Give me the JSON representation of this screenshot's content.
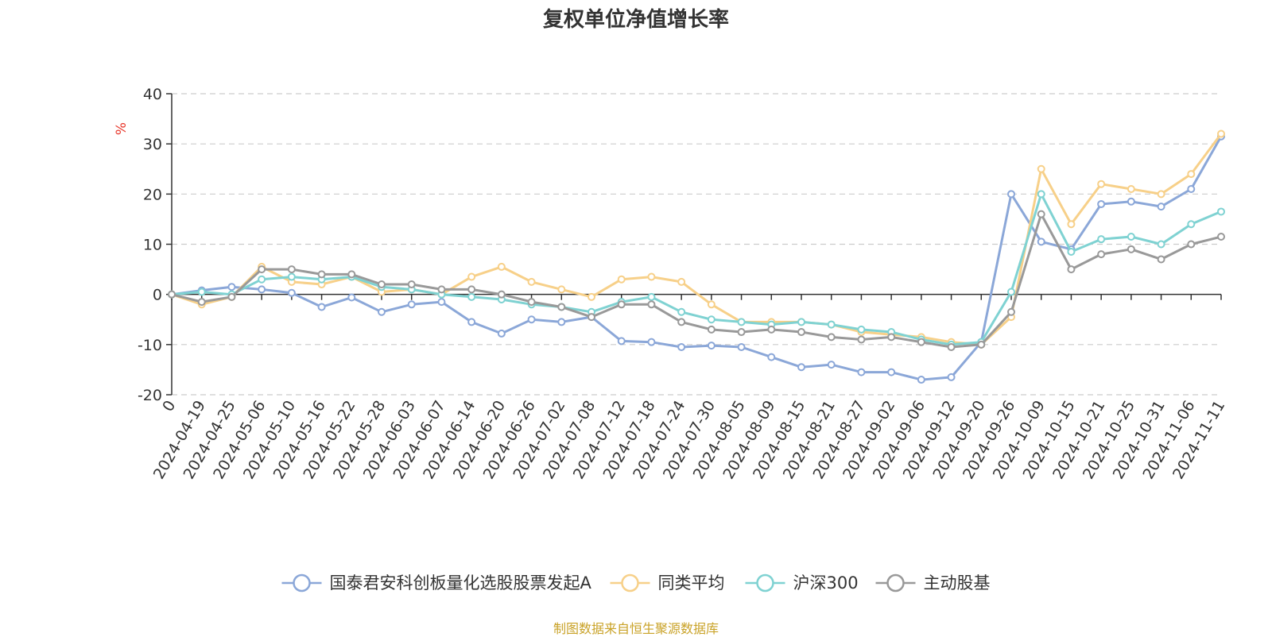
{
  "chart_data": {
    "type": "line",
    "title": "复权单位净值增长率",
    "ylabel": "%",
    "xlabel": "",
    "ylim": [
      -20,
      40
    ],
    "yticks": [
      -20,
      -10,
      0,
      10,
      20,
      30,
      40
    ],
    "grid": true,
    "legend_position": "bottom",
    "x_tick_labels": [
      "0",
      "2024-04-19",
      "2024-04-25",
      "2024-05-06",
      "2024-05-10",
      "2024-05-16",
      "2024-05-22",
      "2024-05-28",
      "2024-06-03",
      "2024-06-07",
      "2024-06-14",
      "2024-06-20",
      "2024-06-26",
      "2024-07-02",
      "2024-07-08",
      "2024-07-12",
      "2024-07-18",
      "2024-07-24",
      "2024-07-30",
      "2024-08-05",
      "2024-08-09",
      "2024-08-15",
      "2024-08-21",
      "2024-08-27",
      "2024-09-02",
      "2024-09-06",
      "2024-09-12",
      "2024-09-20",
      "2024-09-26",
      "2024-10-09",
      "2024-10-15",
      "2024-10-21",
      "2024-10-25",
      "2024-10-31",
      "2024-11-06",
      "2024-11-11"
    ],
    "series": [
      {
        "name": "国泰君安科创板量化选股股票发起A",
        "color": "#8ba7d8",
        "values": [
          0,
          0.8,
          1.5,
          1.0,
          0.3,
          -2.5,
          -0.6,
          -3.5,
          -2.0,
          -1.5,
          -5.5,
          -7.8,
          -5.0,
          -5.5,
          -4.5,
          -9.3,
          -9.5,
          -10.5,
          -10.2,
          -10.5,
          -12.5,
          -14.5,
          -14.0,
          -15.5,
          -15.5,
          -17.0,
          -16.5,
          -9.5,
          20.0,
          10.5,
          9.0,
          18.0,
          18.5,
          17.5,
          21.0,
          31.5
        ]
      },
      {
        "name": "同类平均",
        "color": "#f7d089",
        "values": [
          0,
          -2.0,
          -0.5,
          5.5,
          2.5,
          2.0,
          3.5,
          0.5,
          1.0,
          0.0,
          3.5,
          5.5,
          2.5,
          1.0,
          -0.5,
          3.0,
          3.5,
          2.5,
          -2.0,
          -5.5,
          -5.5,
          -5.5,
          -6.0,
          -7.5,
          -8.0,
          -8.5,
          -9.5,
          -10.0,
          -4.5,
          25.0,
          14.0,
          22.0,
          21.0,
          20.0,
          24.0,
          32.0
        ]
      },
      {
        "name": "沪深300",
        "color": "#7fd2d2",
        "values": [
          0,
          0.5,
          0,
          3.0,
          3.5,
          3.0,
          3.5,
          1.5,
          1.0,
          0.0,
          -0.5,
          -1.0,
          -2.0,
          -2.5,
          -3.5,
          -1.5,
          -0.5,
          -3.5,
          -5.0,
          -5.5,
          -6.0,
          -5.5,
          -6.0,
          -7.0,
          -7.5,
          -9.0,
          -10.0,
          -9.5,
          0.5,
          20.0,
          8.5,
          11.0,
          11.5,
          10.0,
          14.0,
          16.5
        ]
      },
      {
        "name": "主动股基",
        "color": "#999999",
        "values": [
          0,
          -1.5,
          -0.5,
          5.0,
          5.0,
          4.0,
          4.0,
          2.0,
          2.0,
          1.0,
          1.0,
          0.0,
          -1.5,
          -2.5,
          -4.5,
          -2.0,
          -2.0,
          -5.5,
          -7.0,
          -7.5,
          -7.0,
          -7.5,
          -8.5,
          -9.0,
          -8.5,
          -9.5,
          -10.5,
          -10.0,
          -3.5,
          16.0,
          5.0,
          8.0,
          9.0,
          7.0,
          10.0,
          11.5
        ]
      }
    ]
  },
  "source_note": "制图数据来自恒生聚源数据库"
}
